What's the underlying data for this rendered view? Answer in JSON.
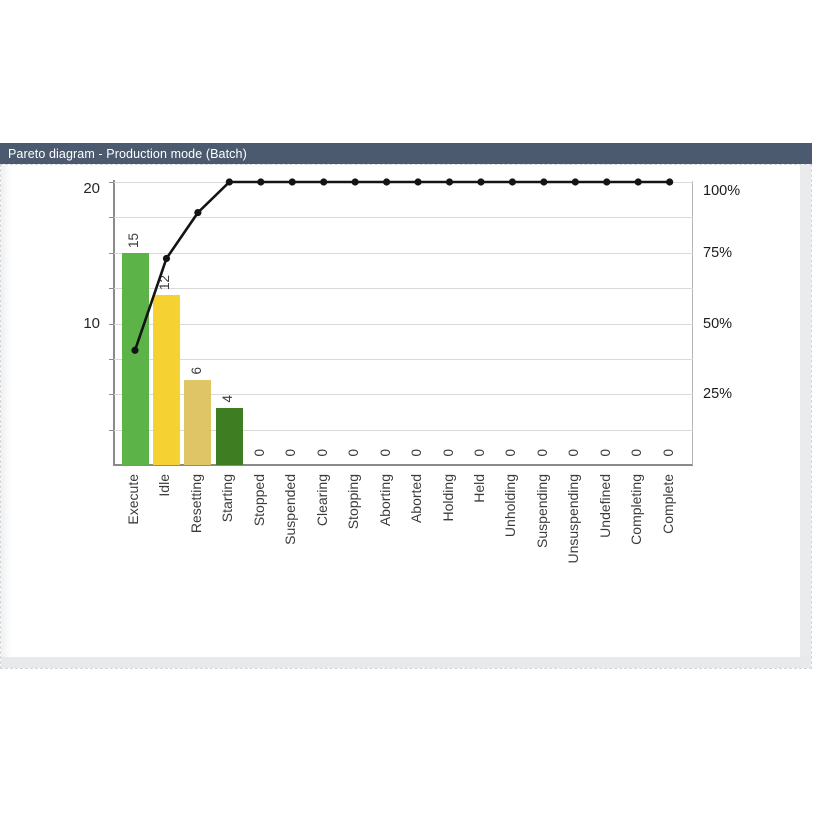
{
  "header": {
    "title": "Pareto diagram - Production mode (Batch)",
    "bg_color": "#4b5a6e",
    "text_color": "#ffffff"
  },
  "chart_data": {
    "type": "bar",
    "subtype": "pareto-with-cumulative-line",
    "title": "Pareto diagram - Production mode (Batch)",
    "categories": [
      "Execute",
      "Idle",
      "Resetting",
      "Starting",
      "Stopped",
      "Suspended",
      "Clearing",
      "Stopping",
      "Aborting",
      "Aborted",
      "Holding",
      "Held",
      "Unholding",
      "Suspending",
      "Unsuspending",
      "Undefined",
      "Completing",
      "Complete"
    ],
    "values": [
      15,
      12,
      6,
      4,
      0,
      0,
      0,
      0,
      0,
      0,
      0,
      0,
      0,
      0,
      0,
      0,
      0,
      0
    ],
    "bar_colors": [
      "#5cb348",
      "#f5d232",
      "#dfc566",
      "#3e7d22"
    ],
    "line": {
      "name": "cumulative-percent",
      "color": "#141414",
      "marker": "circle"
    },
    "left_axis": {
      "ticks": [
        {
          "label": "10",
          "value": 10
        },
        {
          "label": "20",
          "value": 20
        }
      ],
      "max": 20.07
    },
    "right_axis": {
      "ticks": [
        {
          "label": "25%",
          "value": 25
        },
        {
          "label": "50%",
          "value": 50
        },
        {
          "label": "75%",
          "value": 75
        },
        {
          "label": "100%",
          "value": 100
        }
      ],
      "max": 100
    },
    "grid": "horizontal, 8 divisions",
    "legend": "none",
    "xlabel": "",
    "ylabel": ""
  }
}
